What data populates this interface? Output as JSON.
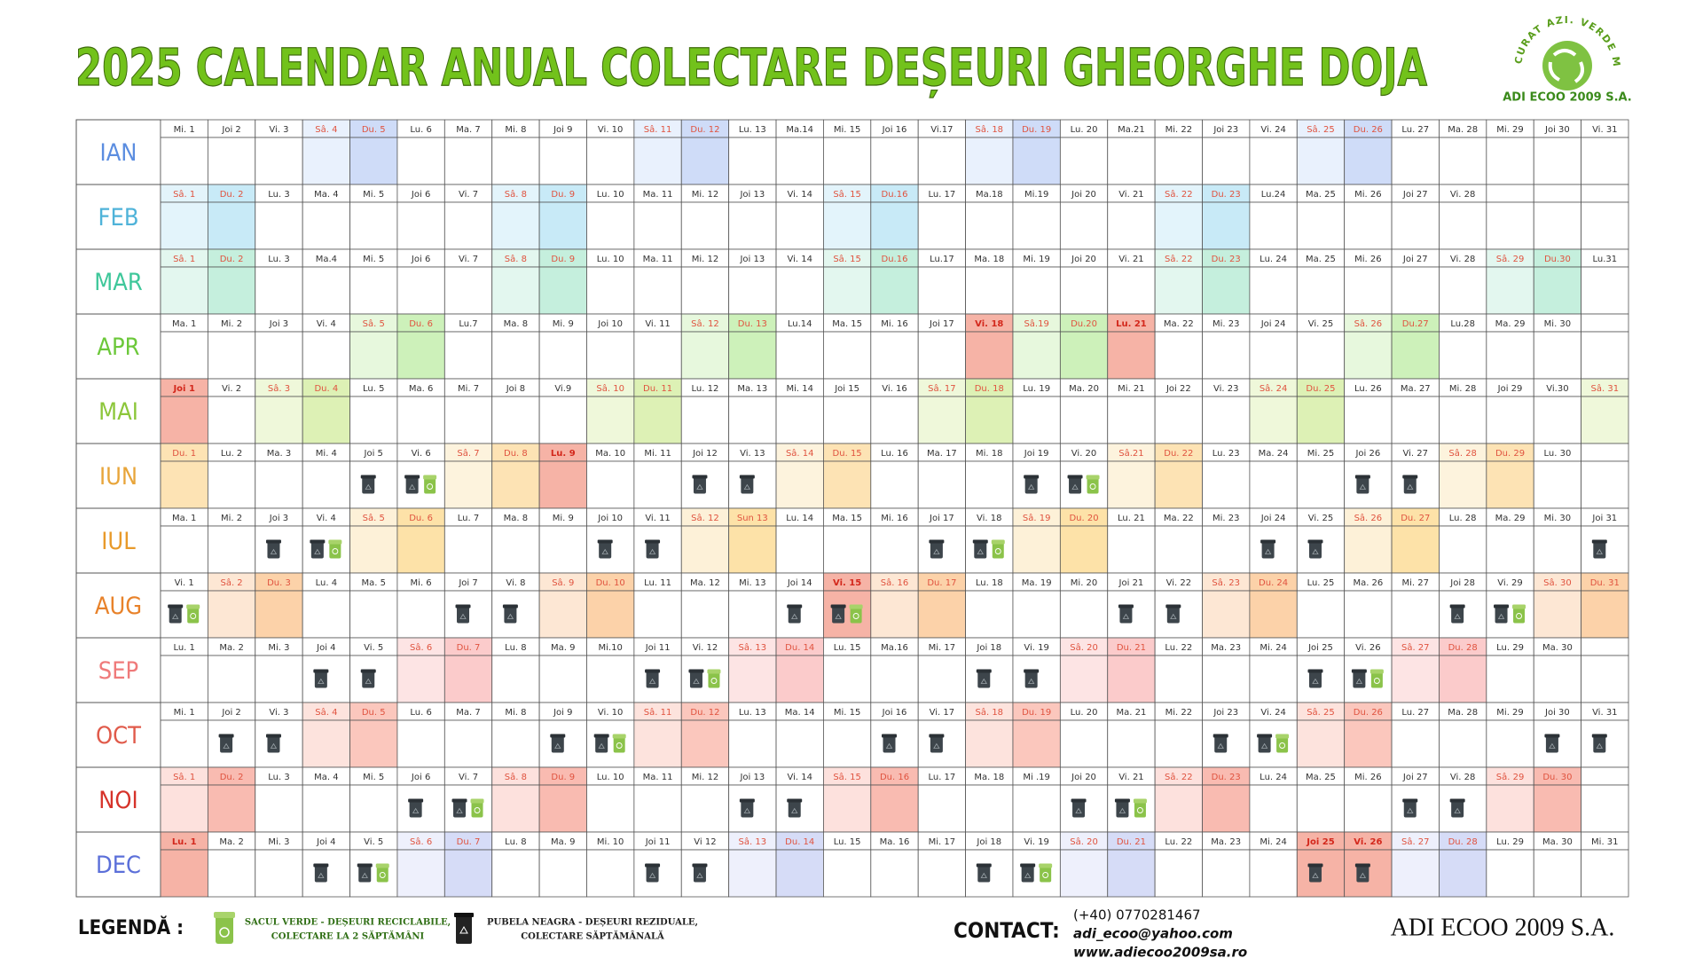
{
  "header": {
    "title": "2025 CALENDAR ANUAL COLECTARE DEȘEURI GHEORGHE DOJA",
    "logo_slogan": "CURAT AZI. VERDE MÂINE.",
    "logo_name": "ADI ECOO 2009 S.A."
  },
  "months": [
    {
      "name": "IAN",
      "color": "#5b8de0",
      "sat_fill": "#e9f1fd",
      "sun_fill": "#cfdcf8",
      "days": [
        "Mi. 1",
        "Joi 2",
        "Vi. 3",
        "Sâ. 4",
        "Du. 5",
        "Lu. 6",
        "Ma. 7",
        "Mi. 8",
        "Joi 9",
        "Vi. 10",
        "Sâ. 11",
        "Du. 12",
        "Lu. 13",
        "Ma.14",
        "Mi. 15",
        "Joi 16",
        "Vi.17",
        "Sâ. 18",
        "Du. 19",
        "Lu. 20",
        "Ma.21",
        "Mi. 22",
        "Joi 23",
        "Vi. 24",
        "Sâ. 25",
        "Du. 26",
        "Lu. 27",
        "Ma. 28",
        "Mi. 29",
        "Joi 30",
        "Vi. 31"
      ],
      "sat": [
        3,
        10,
        17,
        24
      ],
      "sun": [
        4,
        11,
        18,
        25
      ],
      "holiday": [],
      "black": [],
      "green": []
    },
    {
      "name": "FEB",
      "color": "#4fb3d9",
      "sat_fill": "#e3f4fb",
      "sun_fill": "#c8eaf7",
      "days": [
        "Sâ. 1",
        "Du. 2",
        "Lu. 3",
        "Ma. 4",
        "Mi. 5",
        "Joi 6",
        "Vi. 7",
        "Sâ. 8",
        "Du. 9",
        "Lu. 10",
        "Ma. 11",
        "Mi. 12",
        "Joi 13",
        "Vi. 14",
        "Sâ. 15",
        "Du.16",
        "Lu. 17",
        "Ma.18",
        "Mi.19",
        "Joi 20",
        "Vi. 21",
        "Sâ. 22",
        "Du. 23",
        "Lu.24",
        "Ma. 25",
        "Mi. 26",
        "Joi 27",
        "Vi. 28"
      ],
      "sat": [
        0,
        7,
        14,
        21
      ],
      "sun": [
        1,
        8,
        15,
        22
      ],
      "holiday": [],
      "black": [],
      "green": []
    },
    {
      "name": "MAR",
      "color": "#3ec79a",
      "sat_fill": "#e3f7ef",
      "sun_fill": "#c5efdd",
      "days": [
        "Sâ. 1",
        "Du. 2",
        "Lu. 3",
        "Ma.4",
        "Mi. 5",
        "Joi 6",
        "Vi. 7",
        "Sâ. 8",
        "Du. 9",
        "Lu. 10",
        "Ma. 11",
        "Mi. 12",
        "Joi 13",
        "Vi. 14",
        "Sâ. 15",
        "Du.16",
        "Lu.17",
        "Ma. 18",
        "Mi. 19",
        "Joi 20",
        "Vi. 21",
        "Sâ. 22",
        "Du. 23",
        "Lu. 24",
        "Ma. 25",
        "Mi. 26",
        "Joi 27",
        "Vi. 28",
        "Sâ. 29",
        "Du.30",
        "Lu.31"
      ],
      "sat": [
        0,
        7,
        14,
        21,
        28
      ],
      "sun": [
        1,
        8,
        15,
        22,
        29
      ],
      "holiday": [],
      "black": [],
      "green": []
    },
    {
      "name": "APR",
      "color": "#6cc83a",
      "sat_fill": "#e7f8dd",
      "sun_fill": "#cdf1ba",
      "days": [
        "Ma. 1",
        "Mi. 2",
        "Joi 3",
        "Vi. 4",
        "Sâ. 5",
        "Du. 6",
        "Lu.7",
        "Ma. 8",
        "Mi. 9",
        "Joi 10",
        "Vi. 11",
        "Sâ. 12",
        "Du. 13",
        "Lu.14",
        "Ma. 15",
        "Mi. 16",
        "Joi 17",
        "Vi. 18",
        "Sâ.19",
        "Du.20",
        "Lu. 21",
        "Ma. 22",
        "Mi. 23",
        "Joi 24",
        "Vi. 25",
        "Sâ. 26",
        "Du.27",
        "Lu.28",
        "Ma. 29",
        "Mi. 30"
      ],
      "sat": [
        4,
        11,
        18,
        25
      ],
      "sun": [
        5,
        12,
        19,
        26
      ],
      "holiday": [
        17,
        20
      ],
      "black": [],
      "green": []
    },
    {
      "name": "MAI",
      "color": "#8cc63a",
      "sat_fill": "#eff8da",
      "sun_fill": "#ddf1b5",
      "days": [
        "Joi 1",
        "Vi. 2",
        "Sâ. 3",
        "Du. 4",
        "Lu. 5",
        "Ma. 6",
        "Mi. 7",
        "Joi 8",
        "Vi.9",
        "Sâ. 10",
        "Du. 11",
        "Lu. 12",
        "Ma. 13",
        "Mi. 14",
        "Joi 15",
        "Vi. 16",
        "Sâ. 17",
        "Du. 18",
        "Lu. 19",
        "Ma. 20",
        "Mi. 21",
        "Joi 22",
        "Vi. 23",
        "Sâ. 24",
        "Du. 25",
        "Lu. 26",
        "Ma. 27",
        "Mi. 28",
        "Joi 29",
        "Vi.30",
        "Sâ. 31"
      ],
      "sat": [
        2,
        9,
        16,
        23,
        30
      ],
      "sun": [
        3,
        10,
        17,
        24
      ],
      "holiday": [
        0
      ],
      "black": [],
      "green": []
    },
    {
      "name": "IUN",
      "color": "#e8a53a",
      "sat_fill": "#fdf3dd",
      "sun_fill": "#fde3b4",
      "days": [
        "Du. 1",
        "Lu. 2",
        "Ma. 3",
        "Mi. 4",
        "Joi 5",
        "Vi. 6",
        "Sâ. 7",
        "Du. 8",
        "Lu. 9",
        "Ma. 10",
        "Mi. 11",
        "Joi 12",
        "Vi. 13",
        "Sâ. 14",
        "Du. 15",
        "Lu. 16",
        "Ma. 17",
        "Mi. 18",
        "Joi 19",
        "Vi. 20",
        "Sâ.21",
        "Du. 22",
        "Lu. 23",
        "Ma. 24",
        "Mi. 25",
        "Joi 26",
        "Vi. 27",
        "Sâ. 28",
        "Du. 29",
        "Lu. 30"
      ],
      "sat": [
        6,
        13,
        20,
        27
      ],
      "sun": [
        0,
        7,
        14,
        21,
        28
      ],
      "holiday": [
        8
      ],
      "black": [
        4,
        5,
        11,
        12,
        18,
        19,
        25,
        26
      ],
      "green": [
        5,
        19
      ]
    },
    {
      "name": "IUL",
      "color": "#e89a2a",
      "sat_fill": "#fdf1d8",
      "sun_fill": "#fde2a8",
      "days": [
        "Ma. 1",
        "Mi. 2",
        "Joi 3",
        "Vi. 4",
        "Sâ. 5",
        "Du. 6",
        "Lu. 7",
        "Ma. 8",
        "Mi. 9",
        "Joi 10",
        "Vi. 11",
        "Sâ. 12",
        "Sun 13",
        "Lu. 14",
        "Ma. 15",
        "Mi. 16",
        "Joi 17",
        "Vi. 18",
        "Sâ. 19",
        "Du. 20",
        "Lu. 21",
        "Ma. 22",
        "Mi. 23",
        "Joi 24",
        "Vi. 25",
        "Sâ. 26",
        "Du. 27",
        "Lu. 28",
        "Ma. 29",
        "Mi. 30",
        "Joi 31"
      ],
      "sat": [
        4,
        11,
        18,
        25
      ],
      "sun": [
        5,
        12,
        19,
        26
      ],
      "holiday": [],
      "black": [
        2,
        3,
        9,
        10,
        16,
        17,
        23,
        24,
        30
      ],
      "green": [
        3,
        17
      ]
    },
    {
      "name": "AUG",
      "color": "#e8822a",
      "sat_fill": "#fde7d4",
      "sun_fill": "#fcd2a9",
      "days": [
        "Vi. 1",
        "Sâ. 2",
        "Du. 3",
        "Lu. 4",
        "Ma. 5",
        "Mi. 6",
        "Joi 7",
        "Vi. 8",
        "Sâ. 9",
        "Du. 10",
        "Lu. 11",
        "Ma. 12",
        "Mi. 13",
        "Joi 14",
        "Vi. 15",
        "Sâ. 16",
        "Du. 17",
        "Lu. 18",
        "Ma. 19",
        "Mi. 20",
        "Joi 21",
        "Vi. 22",
        "Sâ. 23",
        "Du. 24",
        "Lu. 25",
        "Ma. 26",
        "Mi. 27",
        "Joi 28",
        "Vi. 29",
        "Sâ. 30",
        "Du. 31"
      ],
      "sat": [
        1,
        8,
        15,
        22,
        29
      ],
      "sun": [
        2,
        9,
        16,
        23,
        30
      ],
      "holiday": [
        14
      ],
      "black": [
        0,
        6,
        7,
        13,
        14,
        20,
        21,
        27,
        28
      ],
      "green": [
        0,
        14,
        28
      ]
    },
    {
      "name": "SEP",
      "color": "#ef7a7a",
      "sat_fill": "#fde4e4",
      "sun_fill": "#fbcbcb",
      "days": [
        "Lu. 1",
        "Ma. 2",
        "Mi. 3",
        "Joi 4",
        "Vi. 5",
        "Sâ. 6",
        "Du. 7",
        "Lu. 8",
        "Ma. 9",
        "Mi.10",
        "Joi 11",
        "Vi. 12",
        "Sâ. 13",
        "Du. 14",
        "Lu. 15",
        "Ma.16",
        "Mi. 17",
        "Joi 18",
        "Vi. 19",
        "Sâ. 20",
        "Du. 21",
        "Lu. 22",
        "Ma. 23",
        "Mi. 24",
        "Joi 25",
        "Vi. 26",
        "Sâ. 27",
        "Du. 28",
        "Lu. 29",
        "Ma. 30"
      ],
      "sat": [
        5,
        12,
        19,
        26
      ],
      "sun": [
        6,
        13,
        20,
        27
      ],
      "holiday": [],
      "black": [
        3,
        4,
        10,
        11,
        17,
        18,
        24,
        25
      ],
      "green": [
        11,
        25
      ]
    },
    {
      "name": "OCT",
      "color": "#e05a4a",
      "sat_fill": "#fde3dd",
      "sun_fill": "#fbc7bd",
      "days": [
        "Mi. 1",
        "Joi 2",
        "Vi. 3",
        "Sâ. 4",
        "Du. 5",
        "Lu. 6",
        "Ma. 7",
        "Mi. 8",
        "Joi 9",
        "Vi. 10",
        "Sâ. 11",
        "Du. 12",
        "Lu. 13",
        "Ma. 14",
        "Mi. 15",
        "Joi 16",
        "Vi. 17",
        "Sâ. 18",
        "Du. 19",
        "Lu. 20",
        "Ma. 21",
        "Mi. 22",
        "Joi 23",
        "Vi. 24",
        "Sâ. 25",
        "Du. 26",
        "Lu. 27",
        "Ma. 28",
        "Mi. 29",
        "Joi 30",
        "Vi. 31"
      ],
      "sat": [
        3,
        10,
        17,
        24
      ],
      "sun": [
        4,
        11,
        18,
        25
      ],
      "holiday": [],
      "black": [
        1,
        2,
        8,
        9,
        15,
        16,
        22,
        23,
        29,
        30
      ],
      "green": [
        9,
        23
      ]
    },
    {
      "name": "NOI",
      "color": "#d6332a",
      "sat_fill": "#fde1dd",
      "sun_fill": "#f9bbb1",
      "days": [
        "Sâ. 1",
        "Du. 2",
        "Lu. 3",
        "Ma. 4",
        "Mi. 5",
        "Joi 6",
        "Vi. 7",
        "Sâ. 8",
        "Du. 9",
        "Lu. 10",
        "Ma. 11",
        "Mi. 12",
        "Joi 13",
        "Vi. 14",
        "Sâ. 15",
        "Du. 16",
        "Lu. 17",
        "Ma. 18",
        "Mi .19",
        "Joi 20",
        "Vi. 21",
        "Sâ. 22",
        "Du. 23",
        "Lu. 24",
        "Ma. 25",
        "Mi. 26",
        "Joi 27",
        "Vi. 28",
        "Sâ. 29",
        "Du. 30"
      ],
      "sat": [
        0,
        7,
        14,
        21,
        28
      ],
      "sun": [
        1,
        8,
        15,
        22,
        29
      ],
      "holiday": [],
      "black": [
        5,
        6,
        12,
        13,
        19,
        20,
        26,
        27
      ],
      "green": [
        6,
        20
      ]
    },
    {
      "name": "DEC",
      "color": "#5b6fd9",
      "sat_fill": "#eef0fc",
      "sun_fill": "#d6dcf7",
      "days": [
        "Lu. 1",
        "Ma. 2",
        "Mi. 3",
        "Joi 4",
        "Vi. 5",
        "Sâ. 6",
        "Du. 7",
        "Lu. 8",
        "Ma. 9",
        "Mi. 10",
        "Joi 11",
        "Vi 12",
        "Sâ. 13",
        "Du. 14",
        "Lu. 15",
        "Ma. 16",
        "Mi. 17",
        "Joi 18",
        "Vi. 19",
        "Sâ. 20",
        "Du. 21",
        "Lu. 22",
        "Ma. 23",
        "Mi. 24",
        "Joi 25",
        "Vi. 26",
        "Sâ. 27",
        "Du. 28",
        "Lu. 29",
        "Ma. 30",
        "Mi. 31"
      ],
      "sat": [
        5,
        12,
        19,
        26
      ],
      "sun": [
        6,
        13,
        20,
        27
      ],
      "holiday": [
        0,
        24,
        25
      ],
      "black": [
        3,
        4,
        10,
        11,
        17,
        18,
        24,
        25
      ],
      "green": [
        4,
        18
      ]
    }
  ],
  "legend": {
    "title": "LEGENDĂ :",
    "green": [
      "SACUL VERDE - DEȘEURI RECICLABILE,",
      "COLECTARE LA 2 SĂPTĂMÂNI"
    ],
    "black": [
      "PUBELA NEAGRA - DEȘEURI REZIDUALE,",
      "COLECTARE SĂPTĂMÂNALĂ"
    ]
  },
  "contact": {
    "title": "CONTACT:",
    "phone": "(+40) 0770281467",
    "email": "adi_ecoo@yahoo.com",
    "web": "www.adiecoo2009sa.ro"
  },
  "footer": {
    "brand": "ADI ECOO 2009 S.A."
  }
}
